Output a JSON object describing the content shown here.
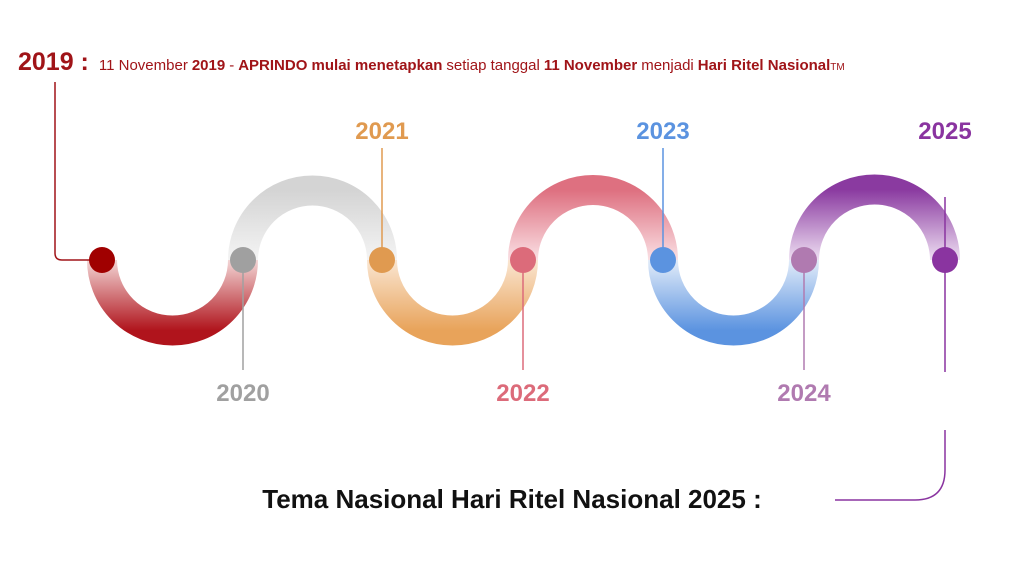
{
  "header": {
    "label": "2019 :",
    "color": "#a01418",
    "description": [
      {
        "text": "11 November",
        "bold": false
      },
      {
        "text": "2019",
        "bold": true
      },
      {
        "text": "-",
        "bold": false
      },
      {
        "text": "APRINDO mulai menetapkan",
        "bold": true
      },
      {
        "text": "setiap tanggal",
        "bold": false
      },
      {
        "text": "11 November",
        "bold": true
      },
      {
        "text": "menjadi",
        "bold": false
      },
      {
        "text": "Hari Ritel Nasional",
        "bold": true
      },
      {
        "text": "TM",
        "bold": false,
        "superscript": true
      }
    ]
  },
  "timeline": [
    {
      "year": "2020",
      "color": "#a0a0a0"
    },
    {
      "year": "2021",
      "color": "#e09a50"
    },
    {
      "year": "2022",
      "color": "#dc6b7a"
    },
    {
      "year": "2023",
      "color": "#5b93e0"
    },
    {
      "year": "2024",
      "color": "#b07ab0"
    },
    {
      "year": "2025",
      "color": "#8a34a0"
    }
  ],
  "footer": {
    "text": "Tema Nasional Hari Ritel Nasional 2025 :"
  }
}
